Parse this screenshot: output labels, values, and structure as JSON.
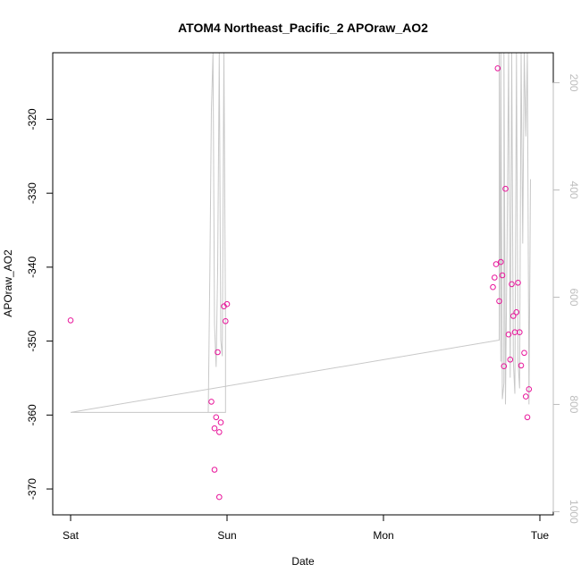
{
  "chart_data": {
    "type": "scatter",
    "title": "ATOM4 Northeast_Pacific_2 APOraw_AO2",
    "xlabel": "Date",
    "ylabel": "APOraw_AO2",
    "x_ticks": [
      "Sat",
      "Sun",
      "Mon",
      "Tue"
    ],
    "xlim": [
      0,
      3.05
    ],
    "ylim": [
      -373.5,
      -311
    ],
    "y_ticks": [
      -370,
      -360,
      -350,
      -340,
      -330,
      -320
    ],
    "y2_ticks": [
      200,
      400,
      600,
      800,
      1000
    ],
    "y2lim": [
      1006,
      144
    ],
    "colors": {
      "points": "#e8149a",
      "profile_line": "#c8c8c8",
      "frame": "#000000",
      "right_axis": "#bdbdbd"
    },
    "series": [
      {
        "type": "points",
        "x_unit": "days",
        "x": [
          0.0,
          0.9,
          0.92,
          0.92,
          0.93,
          0.94,
          0.95,
          0.95,
          0.96,
          0.98,
          0.99,
          1.0,
          2.7,
          2.71,
          2.72,
          2.73,
          2.74,
          2.75,
          2.76,
          2.77,
          2.78,
          2.8,
          2.81,
          2.82,
          2.83,
          2.84,
          2.85,
          2.86,
          2.87,
          2.88,
          2.9,
          2.91,
          2.92,
          2.93
        ],
        "y": [
          -347.2,
          -358.2,
          -361.8,
          -367.4,
          -360.3,
          -351.5,
          -362.3,
          -371.1,
          -361.0,
          -345.3,
          -347.3,
          -345.0,
          -342.7,
          -341.4,
          -339.6,
          -313.1,
          -344.6,
          -339.3,
          -341.1,
          -353.4,
          -329.4,
          -349.1,
          -352.5,
          -342.3,
          -346.6,
          -348.8,
          -346.1,
          -342.1,
          -348.8,
          -353.3,
          -351.6,
          -357.5,
          -360.3,
          -356.5
        ]
      }
    ],
    "profile_line": {
      "x": [
        0.0,
        0.88,
        0.89,
        0.9,
        0.91,
        0.92,
        0.93,
        0.94,
        0.95,
        0.96,
        0.97,
        0.98,
        0.98,
        0.99,
        0.99,
        0.99,
        0.98,
        0.0,
        2.74,
        2.74,
        2.75,
        2.75,
        2.76,
        2.77,
        2.77,
        2.78,
        2.79,
        2.8,
        2.81,
        2.82,
        2.83,
        2.84,
        2.85,
        2.86,
        2.87,
        2.88,
        2.89,
        2.9,
        2.91,
        2.92,
        2.93,
        2.94
      ],
      "y2": [
        815,
        815,
        550,
        250,
        144,
        650,
        730,
        550,
        144,
        680,
        710,
        144,
        144,
        650,
        780,
        815,
        815,
        815,
        680,
        144,
        720,
        144,
        790,
        760,
        144,
        800,
        500,
        144,
        750,
        144,
        720,
        780,
        144,
        720,
        770,
        144,
        500,
        144,
        300,
        144,
        800,
        380
      ]
    }
  }
}
